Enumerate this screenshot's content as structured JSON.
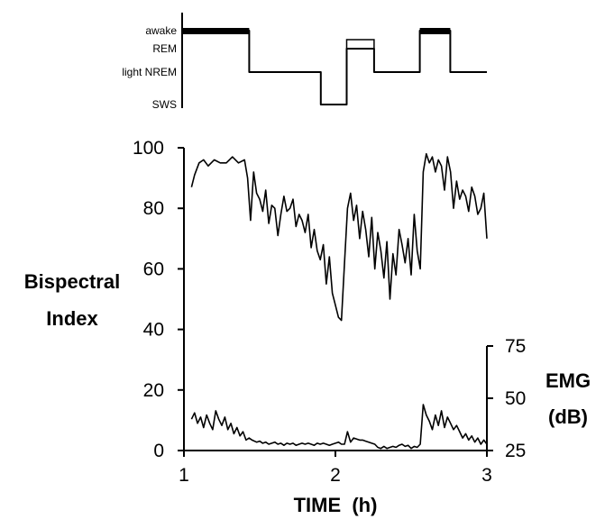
{
  "chart_data": [
    {
      "type": "line",
      "panel": "hypnogram",
      "stage_labels": [
        "awake",
        "REM",
        "light NREM",
        "SWS"
      ],
      "x_range": [
        1,
        3
      ],
      "segments": [
        {
          "x0": 1.0,
          "x1": 1.44,
          "stage": "awake"
        },
        {
          "x0": 1.44,
          "x1": 1.91,
          "stage": "light NREM"
        },
        {
          "x0": 1.91,
          "x1": 2.08,
          "stage": "SWS"
        },
        {
          "x0": 2.08,
          "x1": 2.26,
          "stage": "REM"
        },
        {
          "x0": 2.26,
          "x1": 2.56,
          "stage": "light NREM"
        },
        {
          "x0": 2.56,
          "x1": 2.76,
          "stage": "awake"
        },
        {
          "x0": 2.76,
          "x1": 3.0,
          "stage": "light NREM"
        }
      ]
    },
    {
      "type": "line",
      "panel": "bispectral-emg",
      "xlabel": "TIME  (h)",
      "ylabel_left": [
        "Bispectral",
        "Index"
      ],
      "ylabel_right": [
        "EMG",
        "(dB)"
      ],
      "xlim": [
        1,
        3
      ],
      "x_ticks": [
        1,
        2,
        3
      ],
      "ylim_left": [
        0,
        100
      ],
      "y_ticks_left": [
        0,
        20,
        40,
        60,
        80,
        100
      ],
      "ylim_right": [
        25,
        75
      ],
      "y_ticks_right": [
        25,
        50,
        75
      ],
      "series": [
        {
          "axis": "left",
          "x": [
            1.05,
            1.07,
            1.1,
            1.13,
            1.16,
            1.2,
            1.24,
            1.28,
            1.32,
            1.36,
            1.4,
            1.42,
            1.44,
            1.46,
            1.48,
            1.5,
            1.52,
            1.54,
            1.56,
            1.58,
            1.6,
            1.62,
            1.64,
            1.66,
            1.68,
            1.7,
            1.72,
            1.74,
            1.76,
            1.78,
            1.8,
            1.82,
            1.84,
            1.86,
            1.88,
            1.9,
            1.92,
            1.94,
            1.96,
            1.98,
            2.0,
            2.02,
            2.04,
            2.06,
            2.08,
            2.1,
            2.12,
            2.14,
            2.16,
            2.18,
            2.2,
            2.22,
            2.24,
            2.26,
            2.28,
            2.3,
            2.32,
            2.34,
            2.36,
            2.38,
            2.4,
            2.42,
            2.44,
            2.46,
            2.48,
            2.5,
            2.52,
            2.54,
            2.56,
            2.58,
            2.6,
            2.62,
            2.64,
            2.66,
            2.68,
            2.7,
            2.72,
            2.74,
            2.76,
            2.78,
            2.8,
            2.82,
            2.84,
            2.86,
            2.88,
            2.9,
            2.92,
            2.94,
            2.96,
            2.98,
            3.0
          ],
          "y": [
            87,
            91,
            95,
            96,
            94,
            96,
            95,
            95,
            97,
            95,
            96,
            90,
            76,
            92,
            85,
            83,
            79,
            86,
            75,
            81,
            80,
            71,
            78,
            84,
            79,
            80,
            83,
            74,
            78,
            76,
            72,
            78,
            67,
            73,
            66,
            63,
            68,
            55,
            64,
            52,
            48,
            44,
            43,
            62,
            80,
            85,
            76,
            81,
            70,
            79,
            73,
            64,
            77,
            60,
            72,
            66,
            57,
            69,
            50,
            65,
            58,
            73,
            68,
            62,
            70,
            58,
            78,
            66,
            60,
            92,
            98,
            95,
            97,
            92,
            96,
            94,
            86,
            97,
            92,
            80,
            89,
            83,
            86,
            84,
            79,
            87,
            84,
            78,
            80,
            85,
            70
          ]
        },
        {
          "axis": "right",
          "x": [
            1.05,
            1.07,
            1.09,
            1.11,
            1.13,
            1.15,
            1.17,
            1.19,
            1.21,
            1.23,
            1.25,
            1.27,
            1.29,
            1.31,
            1.33,
            1.35,
            1.37,
            1.39,
            1.41,
            1.43,
            1.45,
            1.48,
            1.5,
            1.52,
            1.54,
            1.56,
            1.58,
            1.6,
            1.62,
            1.64,
            1.66,
            1.68,
            1.7,
            1.72,
            1.74,
            1.76,
            1.78,
            1.8,
            1.82,
            1.84,
            1.86,
            1.88,
            1.9,
            1.92,
            1.94,
            1.96,
            1.98,
            2.0,
            2.02,
            2.04,
            2.06,
            2.08,
            2.1,
            2.12,
            2.14,
            2.16,
            2.18,
            2.2,
            2.22,
            2.24,
            2.26,
            2.28,
            2.3,
            2.32,
            2.34,
            2.36,
            2.38,
            2.4,
            2.42,
            2.44,
            2.46,
            2.48,
            2.5,
            2.52,
            2.54,
            2.56,
            2.58,
            2.6,
            2.62,
            2.64,
            2.66,
            2.68,
            2.7,
            2.72,
            2.74,
            2.76,
            2.78,
            2.8,
            2.82,
            2.84,
            2.86,
            2.88,
            2.9,
            2.92,
            2.94,
            2.96,
            2.98,
            3.0
          ],
          "y": [
            40,
            43,
            38,
            41,
            36,
            42,
            38,
            35,
            44,
            40,
            37,
            41,
            35,
            38,
            33,
            36,
            32,
            34,
            30,
            31,
            30,
            29,
            29.5,
            28.5,
            29,
            28,
            28.5,
            29,
            28,
            28.5,
            27.5,
            28.5,
            28,
            28.5,
            27.5,
            28,
            28.5,
            28,
            28.5,
            28,
            27.5,
            28.5,
            28,
            28.5,
            28,
            27.5,
            28,
            28.5,
            29,
            28,
            28,
            34,
            29,
            31,
            30.5,
            30,
            30,
            29.5,
            29,
            28.5,
            28,
            26.5,
            26,
            27,
            26,
            26.5,
            27,
            26.5,
            27.5,
            28,
            27,
            27.5,
            26,
            27,
            26.5,
            28,
            47,
            42,
            39,
            35,
            42,
            37,
            44,
            36,
            41,
            38,
            35,
            37,
            34,
            31,
            33,
            30,
            32,
            29,
            31,
            28,
            30,
            28
          ]
        }
      ]
    }
  ]
}
